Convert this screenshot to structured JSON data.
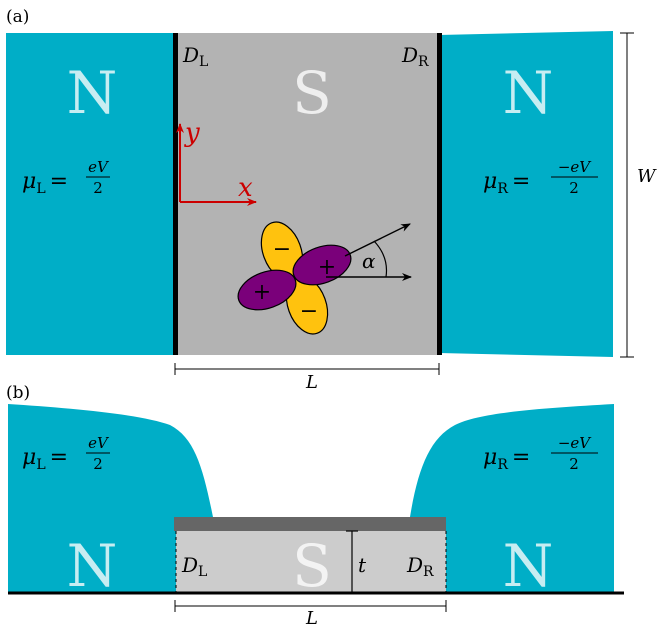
{
  "panel_a": {
    "label": "(a)",
    "left_region_letter": "N",
    "center_region_letter": "S",
    "right_region_letter": "N",
    "interface_left": {
      "symbol": "D",
      "subscript": "L"
    },
    "interface_right": {
      "symbol": "D",
      "subscript": "R"
    },
    "mu_left": {
      "symbol": "μ",
      "subscript": "L",
      "eq": "=",
      "numerator": "eV",
      "denominator": "2"
    },
    "mu_right": {
      "symbol": "μ",
      "subscript": "R",
      "eq": "=",
      "numerator": "−eV",
      "denominator": "2"
    },
    "axis_y_label": "y",
    "axis_x_label": "x",
    "angle_label": "α",
    "lobe_signs": {
      "top": "−",
      "right": "+",
      "left": "+",
      "bottom": "−"
    },
    "length_label": "L",
    "width_label": "W"
  },
  "panel_b": {
    "label": "(b)",
    "left_region_letter": "N",
    "center_region_letter": "S",
    "right_region_letter": "N",
    "interface_left": {
      "symbol": "D",
      "subscript": "L"
    },
    "interface_right": {
      "symbol": "D",
      "subscript": "R"
    },
    "mu_left": {
      "symbol": "μ",
      "subscript": "L",
      "eq": "=",
      "numerator": "eV",
      "denominator": "2"
    },
    "mu_right": {
      "symbol": "μ",
      "subscript": "R",
      "eq": "=",
      "numerator": "−eV",
      "denominator": "2"
    },
    "thickness_label": "t",
    "length_label": "L"
  },
  "colors": {
    "normal_metal": "#00aec7",
    "superconductor_top": "#b3b3b3",
    "superconductor_side": "#cccccc",
    "top_layer": "#666666",
    "interface": "#000000",
    "axis": "#cc0000",
    "lobe_positive": "#7a007a",
    "lobe_negative": "#ffc20e"
  }
}
